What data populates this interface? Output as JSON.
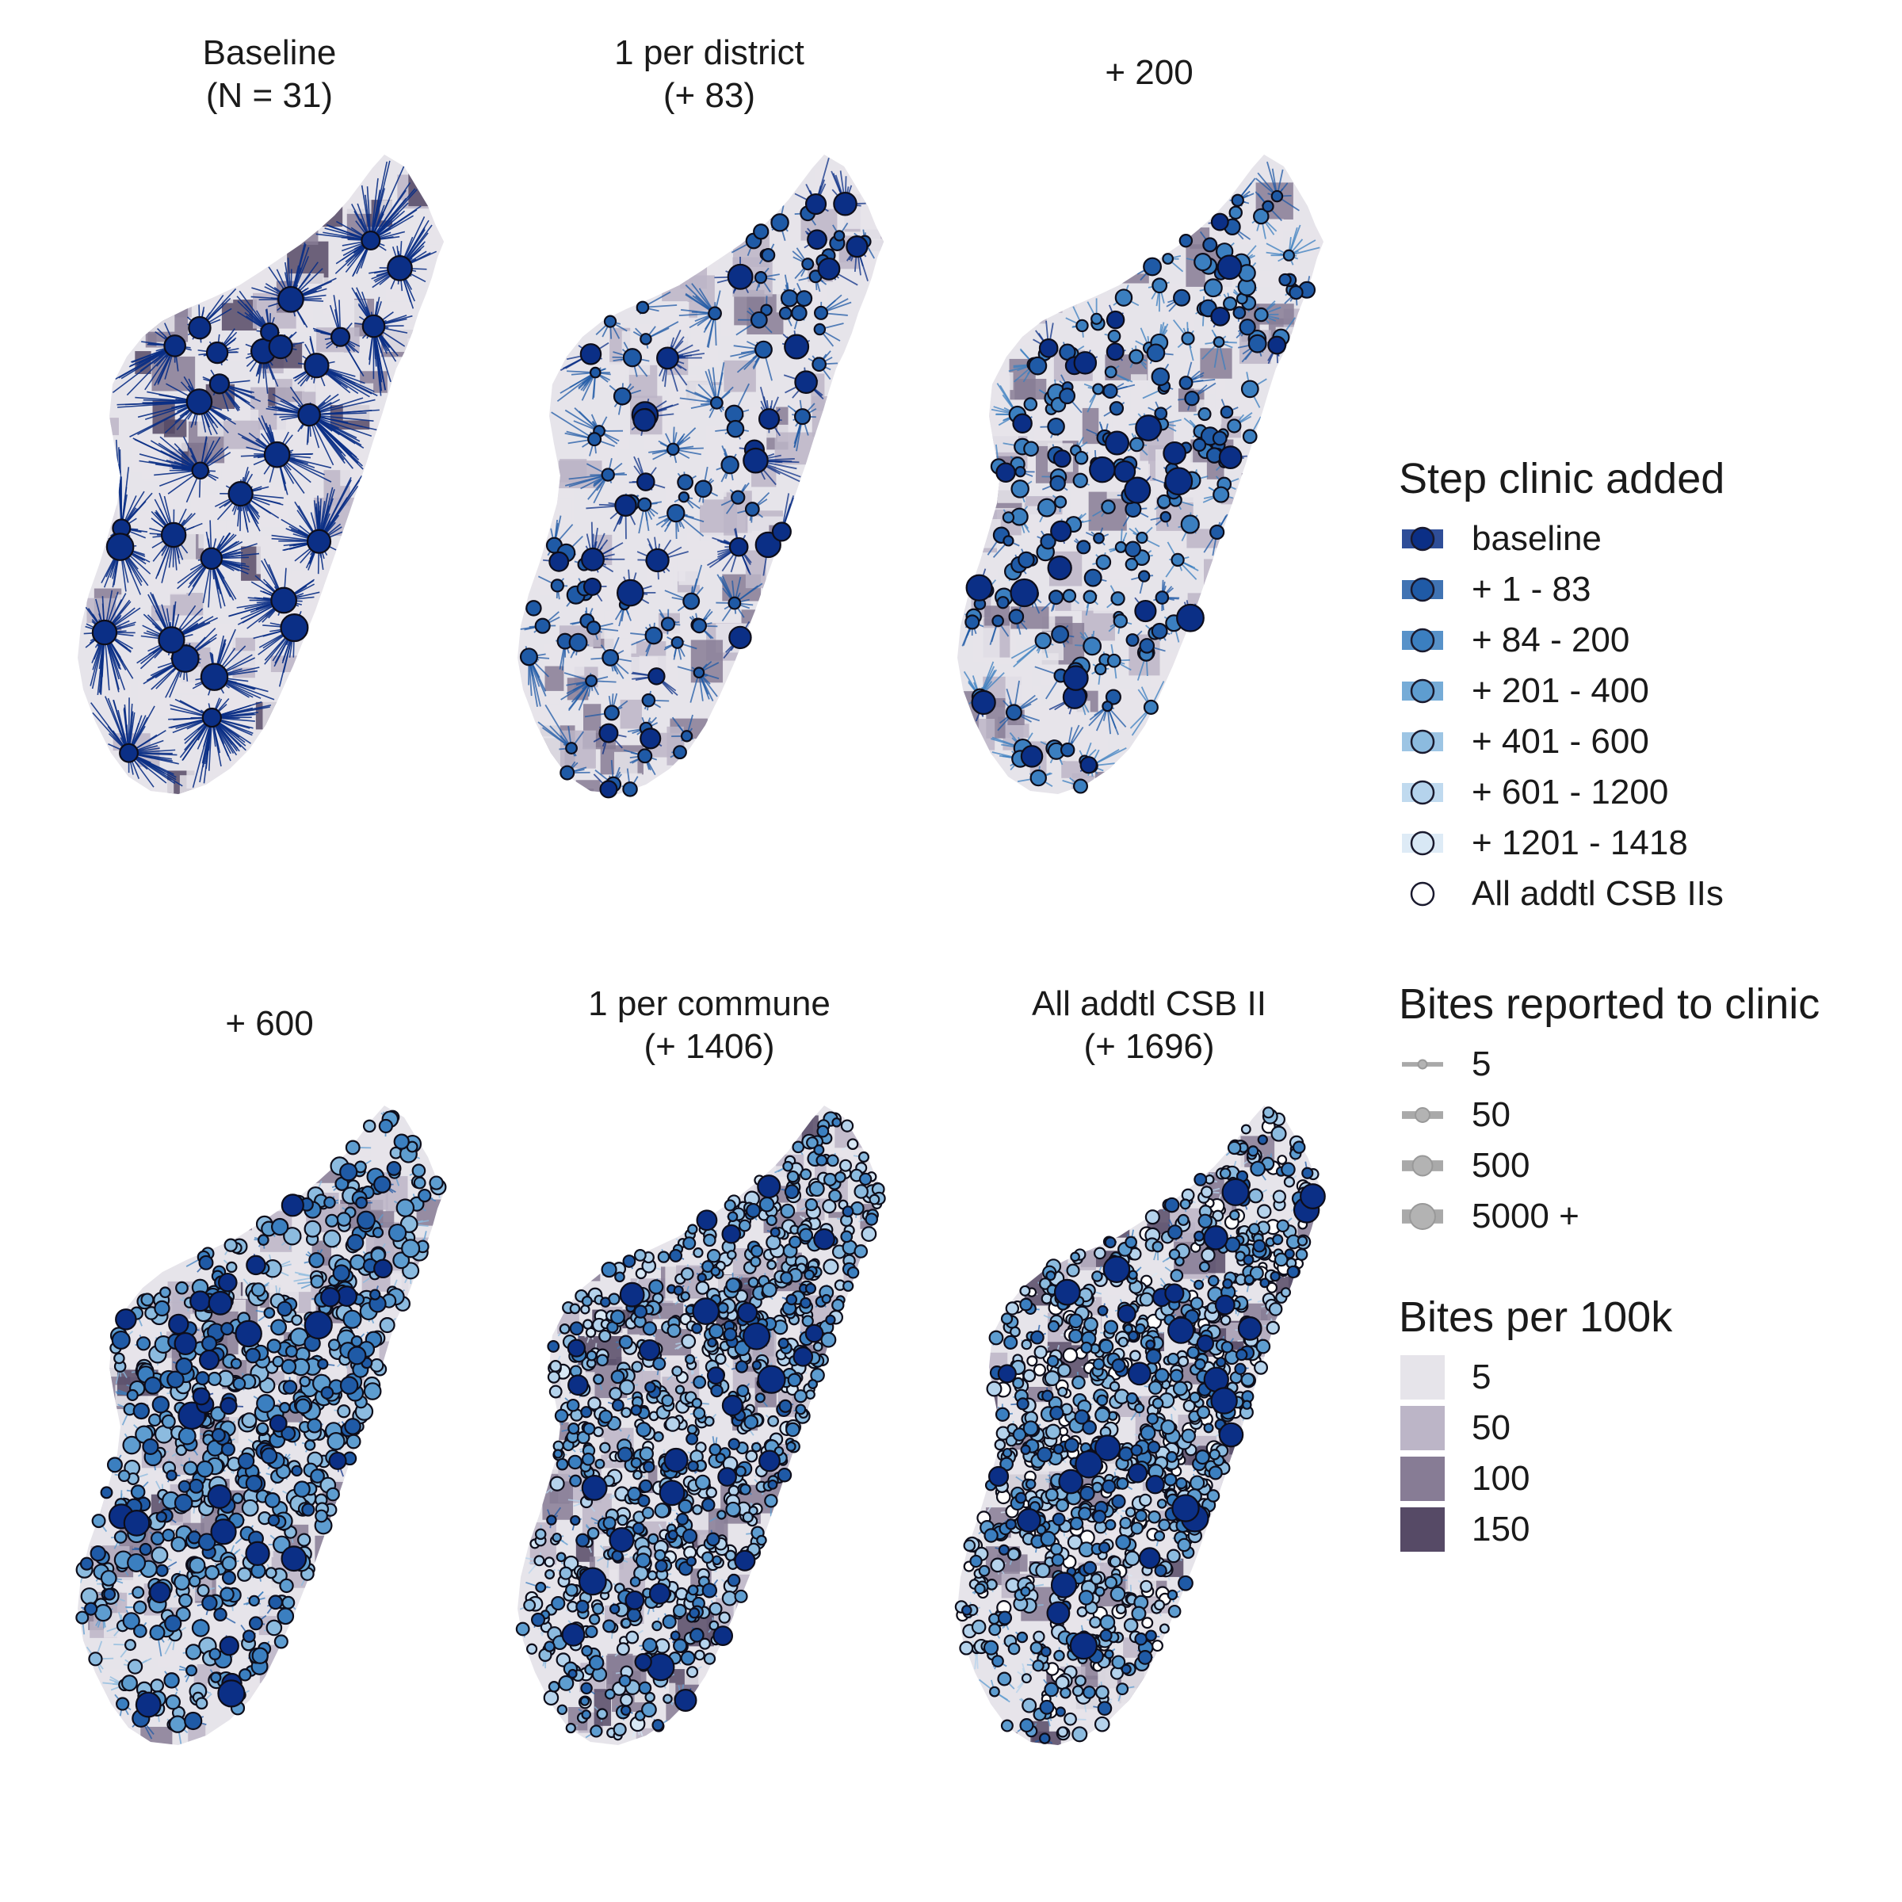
{
  "panels": [
    {
      "title": "Baseline\n(N = 31)",
      "level": 0
    },
    {
      "title": "1 per district\n(+ 83)",
      "level": 1
    },
    {
      "title": "+ 200",
      "level": 2
    },
    {
      "title": "+ 600",
      "level": 3
    },
    {
      "title": "1 per commune\n(+ 1406)",
      "level": 4
    },
    {
      "title": "All addtl CSB II\n(+ 1696)",
      "level": 5
    }
  ],
  "legend": {
    "step": {
      "title": "Step clinic added",
      "items": [
        {
          "label": "baseline",
          "color": "#0b2f86"
        },
        {
          "label": "+ 1 - 83",
          "color": "#1f5aa6"
        },
        {
          "label": "+ 84 - 200",
          "color": "#3b7fc0"
        },
        {
          "label": "+ 201 - 400",
          "color": "#5e9dd0"
        },
        {
          "label": "+ 401 - 600",
          "color": "#8cbbdf"
        },
        {
          "label": "+ 601 - 1200",
          "color": "#b5d3ec"
        },
        {
          "label": "+ 1201 - 1418",
          "color": "#d8e8f5"
        },
        {
          "label": "All addtl CSB IIs",
          "color": "#ffffff"
        }
      ]
    },
    "bites": {
      "title": "Bites reported to clinic",
      "items": [
        {
          "label": "5",
          "value": 5
        },
        {
          "label": "50",
          "value": 50
        },
        {
          "label": "500",
          "value": 500
        },
        {
          "label": "5000 +",
          "value": 5000
        }
      ]
    },
    "rate": {
      "title": "Bites per 100k",
      "items": [
        {
          "label": "5",
          "color": "#e6e4ea"
        },
        {
          "label": "50",
          "color": "#bcb5c7"
        },
        {
          "label": "100",
          "color": "#877c95"
        },
        {
          "label": "150",
          "color": "#564a66"
        }
      ]
    }
  }
}
